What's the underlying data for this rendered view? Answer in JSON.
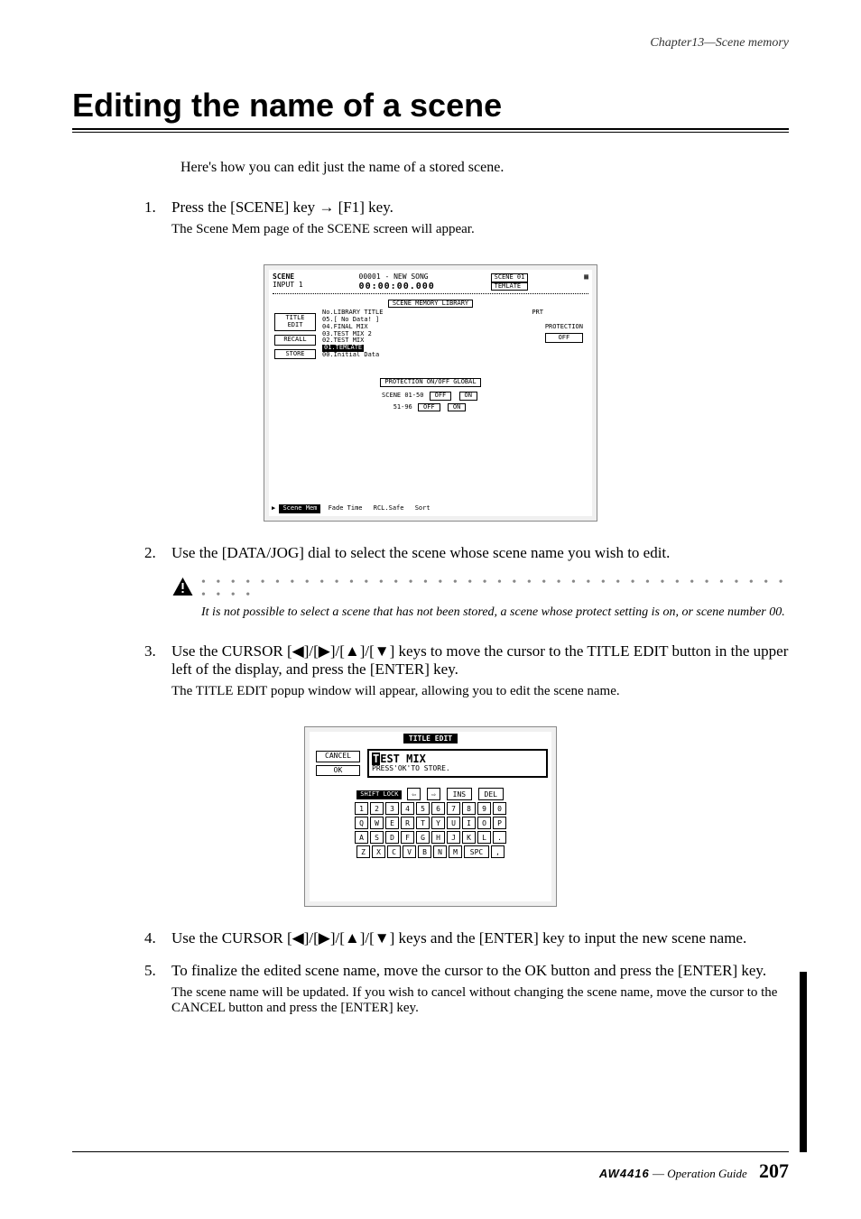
{
  "chapter_header": "Chapter13—Scene memory",
  "title": "Editing the name of a scene",
  "intro": "Here's how you can edit just the name of a stored scene.",
  "step1": {
    "num": "1.",
    "main_a": "Press the [SCENE] key ",
    "main_b": " [F1] key.",
    "arrow": "→",
    "sub": "The Scene Mem page of the SCENE screen will appear."
  },
  "lcd1": {
    "header": {
      "scene_label": "SCENE",
      "input_label": "INPUT 1",
      "song": "00001 - NEW SONG",
      "time": "00:00:00.000",
      "scene_num": "SCENE 01",
      "template": "TEMLATE"
    },
    "lib_title": "SCENE MEMORY LIBRARY",
    "list_head_no": "No.LIBRARY TITLE",
    "list_head_prt": "PRT",
    "rows": [
      "05.[   No Data!   ]",
      "04.FINAL MIX",
      "03.TEST MIX 2",
      "02.TEST MIX"
    ],
    "row_selected": "01.TEMLATE",
    "row_last": "00.Initial Data",
    "buttons": {
      "title_edit": "TITLE EDIT",
      "recall": "RECALL",
      "store": "STORE"
    },
    "protection_label": "PROTECTION",
    "protection_state": "OFF",
    "global_label": "PROTECTION ON/OFF GLOBAL",
    "global_row1_label": "SCENE 01-50",
    "global_row2_label": "51-96",
    "off": "OFF",
    "on": "ON",
    "tabs": {
      "active": "Scene Mem",
      "t2": "Fade Time",
      "t3": "RCL.Safe",
      "t4": "Sort"
    }
  },
  "step2": {
    "num": "2.",
    "main": "Use the [DATA/JOG] dial to select the scene whose scene name you wish to edit."
  },
  "note1": {
    "dots": "• • • • • • • • • • • • • • • • • • • • • • • • • • • • • • • • • • • • • • • • • • • •",
    "text": "It is not possible to select a scene that has not been stored, a scene whose protect setting is on, or scene number 00."
  },
  "step3": {
    "num": "3.",
    "main_a": "Use the CURSOR [",
    "left": "◀",
    "sep": "]/[",
    "right": "▶",
    "up": "▲",
    "down": "▼",
    "main_b": "] keys to move the cursor to the TITLE EDIT button in the upper left of the display, and press the [ENTER] key.",
    "sub": "The TITLE EDIT popup window will appear, allowing you to edit the scene name."
  },
  "lcd2": {
    "title": "TITLE EDIT",
    "cancel": "CANCEL",
    "ok": "OK",
    "cursor_char": "T",
    "input_rest": "EST MIX",
    "msg": "PRESS'OK'TO STORE.",
    "shift": "SHIFT LOCK",
    "arrow_l": "⇦",
    "arrow_r": "⇨",
    "ins": "INS",
    "del": "DEL",
    "row_nums": [
      "1",
      "2",
      "3",
      "4",
      "5",
      "6",
      "7",
      "8",
      "9",
      "0"
    ],
    "row_q": [
      "Q",
      "W",
      "E",
      "R",
      "T",
      "Y",
      "U",
      "I",
      "O",
      "P"
    ],
    "row_a": [
      "A",
      "S",
      "D",
      "F",
      "G",
      "H",
      "J",
      "K",
      "L",
      "."
    ],
    "row_z": [
      "Z",
      "X",
      "C",
      "V",
      "B",
      "N",
      "M"
    ],
    "spc": "SPC",
    "comma": ","
  },
  "step4": {
    "num": "4.",
    "main_a": "Use the CURSOR [",
    "main_b": "] keys and the [ENTER] key to input the new scene name."
  },
  "step5": {
    "num": "5.",
    "main": "To finalize the edited scene name, move the cursor to the OK button and press the [ENTER] key.",
    "sub": "The scene name will be updated. If you wish to cancel without changing the scene name, move the cursor to the CANCEL button and press the [ENTER] key."
  },
  "footer": {
    "model": "AW4416",
    "guide_sep": " — ",
    "guide": "Operation Guide",
    "page": "207"
  }
}
